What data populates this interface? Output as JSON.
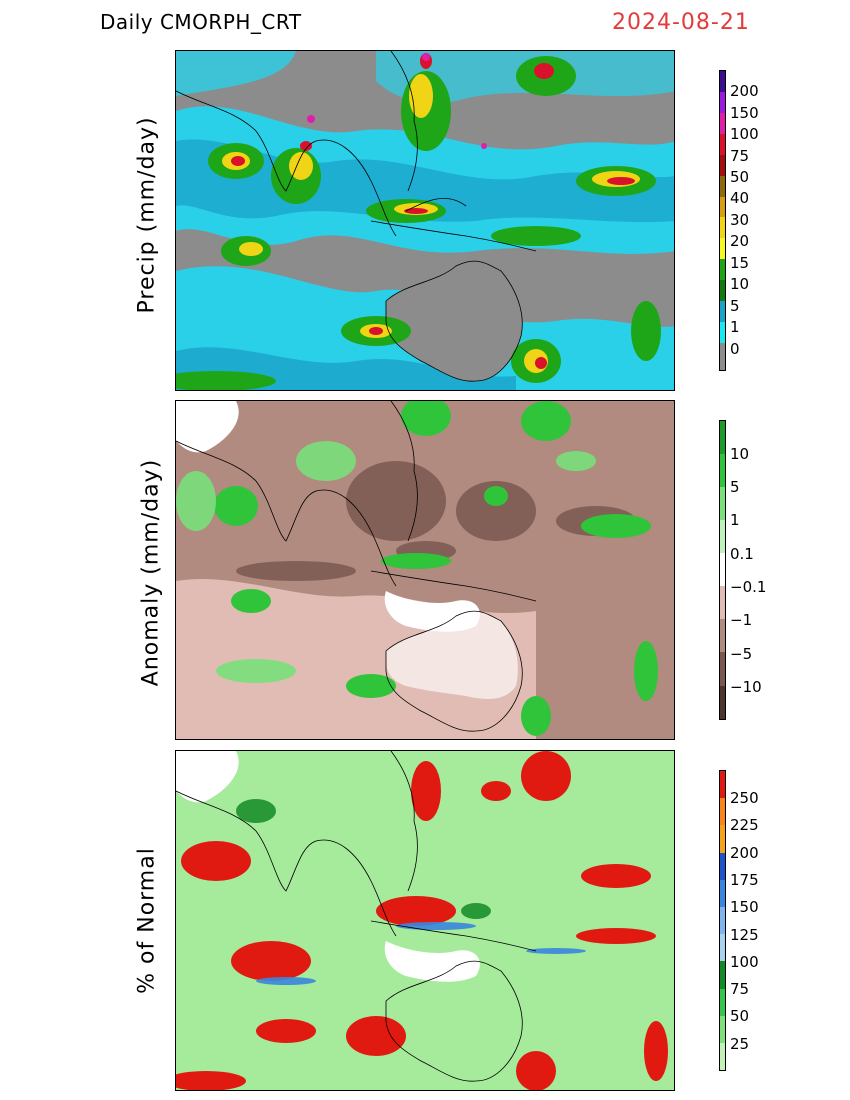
{
  "header": {
    "title": "Daily  CMORPH_CRT",
    "date": "2024-08-21"
  },
  "panels": [
    {
      "id": "precip",
      "ylabel": "Precip  (mm/day)",
      "colorbar": {
        "labels": [
          "200",
          "150",
          "100",
          "75",
          "50",
          "40",
          "30",
          "20",
          "15",
          "10",
          "5",
          "1",
          "0"
        ],
        "colors": [
          "#3b0e8f",
          "#9a1adf",
          "#e01fa8",
          "#d9112a",
          "#a50f0f",
          "#8d6a10",
          "#d59f12",
          "#f0d416",
          "#f7f721",
          "#1ea618",
          "#127a0f",
          "#1aa3c9",
          "#18e8f2",
          "#8c8c8c"
        ]
      }
    },
    {
      "id": "anomaly",
      "ylabel": "Anomaly  (mm/day)",
      "colorbar": {
        "labels": [
          "10",
          "5",
          "1",
          "0.1",
          "−0.1",
          "−1",
          "−5",
          "−10"
        ],
        "colors": [
          "#1e9a28",
          "#2fc43a",
          "#79e07a",
          "#bff3bb",
          "#ffffff",
          "#e0bcb4",
          "#b18a80",
          "#7a5850",
          "#4d342c"
        ]
      }
    },
    {
      "id": "pct",
      "ylabel": "%  of  Normal",
      "colorbar": {
        "labels": [
          "250",
          "225",
          "200",
          "175",
          "150",
          "125",
          "100",
          "75",
          "50",
          "25"
        ],
        "colors": [
          "#e01a10",
          "#f8851a",
          "#f3a21a",
          "#1b55c8",
          "#3a86de",
          "#7fb4ec",
          "#a9d2f2",
          "#138a26",
          "#36c44a",
          "#7ee07a",
          "#c2f2b8"
        ]
      }
    }
  ]
}
